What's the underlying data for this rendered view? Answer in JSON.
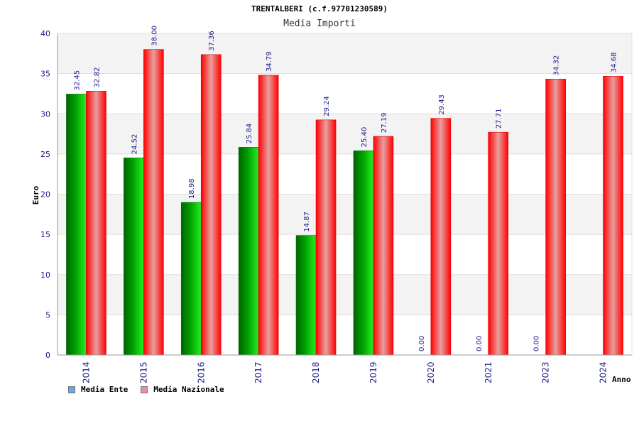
{
  "chart_data": {
    "type": "bar",
    "title": "TRENTALBERI (c.f.97701230589)",
    "subtitle": "Media Importi",
    "xlabel": "Anno",
    "ylabel": "Euro",
    "ylim": [
      0,
      40
    ],
    "yticks": [
      0,
      5,
      10,
      15,
      20,
      25,
      30,
      35,
      40
    ],
    "categories": [
      "2014",
      "2015",
      "2016",
      "2017",
      "2018",
      "2019",
      "2020",
      "2021",
      "2023",
      "2024"
    ],
    "series": [
      {
        "name": "Media Ente",
        "color": "#00aa00",
        "values": [
          32.45,
          24.52,
          18.98,
          25.84,
          14.87,
          25.4,
          0.0,
          0.0,
          0.0,
          null
        ],
        "labels": [
          "32.45",
          "24.52",
          "18.98",
          "25.84",
          "14.87",
          "25.40",
          "0.00",
          "0.00",
          "0.00",
          ""
        ]
      },
      {
        "name": "Media Nazionale",
        "color": "#ee0000",
        "values": [
          32.82,
          38.0,
          37.36,
          34.79,
          29.24,
          27.19,
          29.43,
          27.71,
          34.32,
          34.68
        ],
        "labels": [
          "32.82",
          "38.00",
          "37.36",
          "34.79",
          "29.24",
          "27.19",
          "29.43",
          "27.71",
          "34.32",
          "34.68"
        ]
      }
    ],
    "legend": {
      "position": "bottom-left",
      "items": [
        {
          "label": "Media Ente",
          "color": "#6aa6e8"
        },
        {
          "label": "Media Nazionale",
          "color": "#e88ab4"
        }
      ]
    },
    "grid": true
  }
}
